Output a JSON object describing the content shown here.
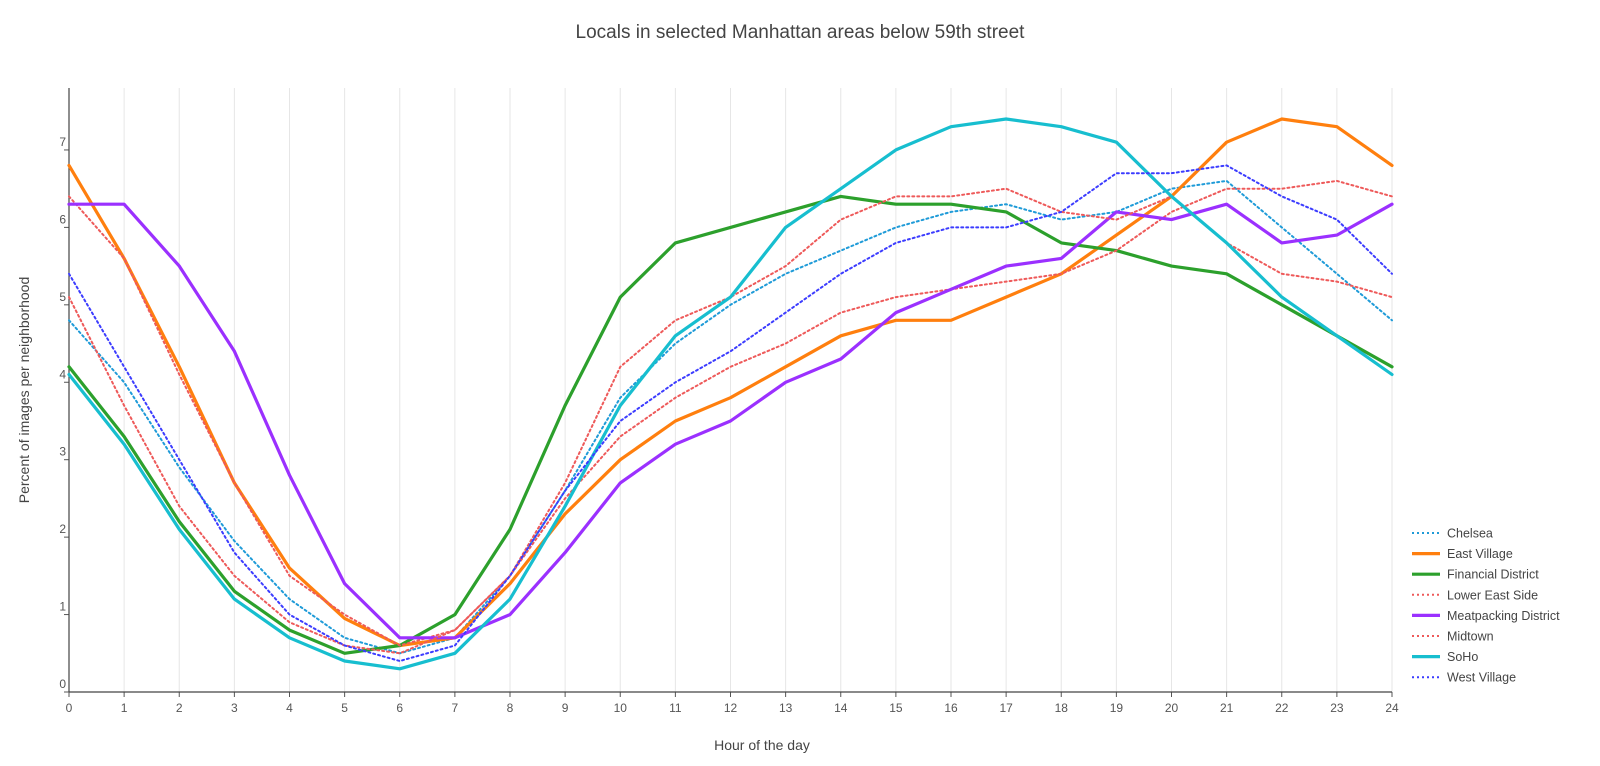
{
  "chart_data": {
    "type": "line",
    "title": "Locals in selected Manhattan areas below 59th street",
    "xlabel": "Hour of the day",
    "ylabel": "Percent of images per neighborhood",
    "xlim": [
      0,
      24
    ],
    "ylim": [
      0,
      7.8
    ],
    "x": [
      0,
      1,
      2,
      3,
      4,
      5,
      6,
      7,
      8,
      9,
      10,
      11,
      12,
      13,
      14,
      15,
      16,
      17,
      18,
      19,
      20,
      21,
      22,
      23,
      24
    ],
    "xticks": [
      "0",
      "1",
      "2",
      "3",
      "4",
      "5",
      "6",
      "7",
      "8",
      "9",
      "10",
      "11",
      "12",
      "13",
      "14",
      "15",
      "16",
      "17",
      "18",
      "19",
      "20",
      "21",
      "22",
      "23",
      "24"
    ],
    "yticks": [
      "0",
      "1",
      "2",
      "3",
      "4",
      "5",
      "6",
      "7"
    ],
    "grid": "vertical",
    "legend_position": "bottom-right",
    "series": [
      {
        "name": "Chelsea",
        "color": "#1f9bd8",
        "style": "dotted",
        "values": [
          4.8,
          4.0,
          2.9,
          1.95,
          1.2,
          0.7,
          0.5,
          0.7,
          1.5,
          2.6,
          3.8,
          4.5,
          5.0,
          5.4,
          5.7,
          6.0,
          6.2,
          6.3,
          6.1,
          6.2,
          6.5,
          6.6,
          6.0,
          5.4,
          4.8
        ]
      },
      {
        "name": "East Village",
        "color": "#ff7f0e",
        "style": "solid",
        "values": [
          6.8,
          5.6,
          4.2,
          2.7,
          1.6,
          0.95,
          0.6,
          0.7,
          1.4,
          2.3,
          3.0,
          3.5,
          3.8,
          4.2,
          4.6,
          4.8,
          4.8,
          5.1,
          5.4,
          5.9,
          6.4,
          7.1,
          7.4,
          7.3,
          6.8
        ]
      },
      {
        "name": "Financial District",
        "color": "#2ca02c",
        "style": "solid",
        "values": [
          4.2,
          3.3,
          2.2,
          1.3,
          0.8,
          0.5,
          0.6,
          1.0,
          2.1,
          3.7,
          5.1,
          5.8,
          6.0,
          6.2,
          6.4,
          6.3,
          6.3,
          6.2,
          5.8,
          5.7,
          5.5,
          5.4,
          5.0,
          4.6,
          4.2
        ]
      },
      {
        "name": "Lower East Side",
        "color": "#ee5a5a",
        "style": "dotted",
        "values": [
          6.4,
          5.6,
          4.1,
          2.7,
          1.5,
          1.0,
          0.6,
          0.8,
          1.5,
          2.5,
          3.3,
          3.8,
          4.2,
          4.5,
          4.9,
          5.1,
          5.2,
          5.3,
          5.4,
          5.7,
          6.2,
          6.5,
          6.5,
          6.6,
          6.4
        ]
      },
      {
        "name": "Meatpacking District",
        "color": "#9b30ff",
        "style": "solid",
        "values": [
          6.3,
          6.3,
          5.5,
          4.4,
          2.8,
          1.4,
          0.7,
          0.7,
          1.0,
          1.8,
          2.7,
          3.2,
          3.5,
          4.0,
          4.3,
          4.9,
          5.2,
          5.5,
          5.6,
          6.2,
          6.1,
          6.3,
          5.8,
          5.9,
          6.3
        ]
      },
      {
        "name": "Midtown",
        "color": "#ee5a5a",
        "style": "dotted",
        "values": [
          5.1,
          3.7,
          2.4,
          1.5,
          0.9,
          0.6,
          0.5,
          0.8,
          1.5,
          2.7,
          4.2,
          4.8,
          5.1,
          5.5,
          6.1,
          6.4,
          6.4,
          6.5,
          6.2,
          6.1,
          6.4,
          5.8,
          5.4,
          5.3,
          5.1
        ]
      },
      {
        "name": "SoHo",
        "color": "#17becf",
        "style": "solid",
        "values": [
          4.1,
          3.2,
          2.1,
          1.2,
          0.7,
          0.4,
          0.3,
          0.5,
          1.2,
          2.4,
          3.7,
          4.6,
          5.1,
          6.0,
          6.5,
          7.0,
          7.3,
          7.4,
          7.3,
          7.1,
          6.4,
          5.8,
          5.1,
          4.6,
          4.1
        ]
      },
      {
        "name": "West Village",
        "color": "#3c3cff",
        "style": "dotted",
        "values": [
          5.4,
          4.2,
          3.0,
          1.8,
          1.0,
          0.6,
          0.4,
          0.6,
          1.5,
          2.6,
          3.5,
          4.0,
          4.4,
          4.9,
          5.4,
          5.8,
          6.0,
          6.0,
          6.2,
          6.7,
          6.7,
          6.8,
          6.4,
          6.1,
          5.4
        ]
      }
    ]
  }
}
